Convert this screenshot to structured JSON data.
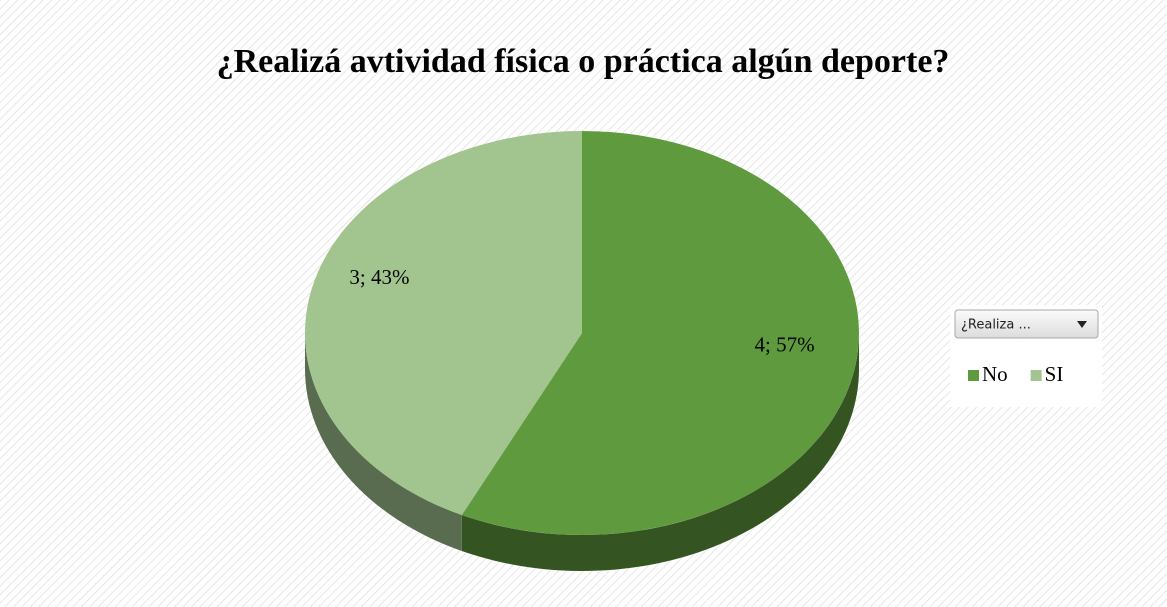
{
  "chart_data": {
    "type": "pie",
    "title": "¿Realizá avtividad física o práctica algún deporte?",
    "categories": [
      "No",
      "SI"
    ],
    "values": [
      4,
      3
    ],
    "value_labels": [
      "4; 57%",
      "3; 43%"
    ],
    "colors": [
      "#5f9a3e",
      "#a2c48f"
    ],
    "legend_filter": "¿Realiza ...",
    "legend": "right"
  }
}
